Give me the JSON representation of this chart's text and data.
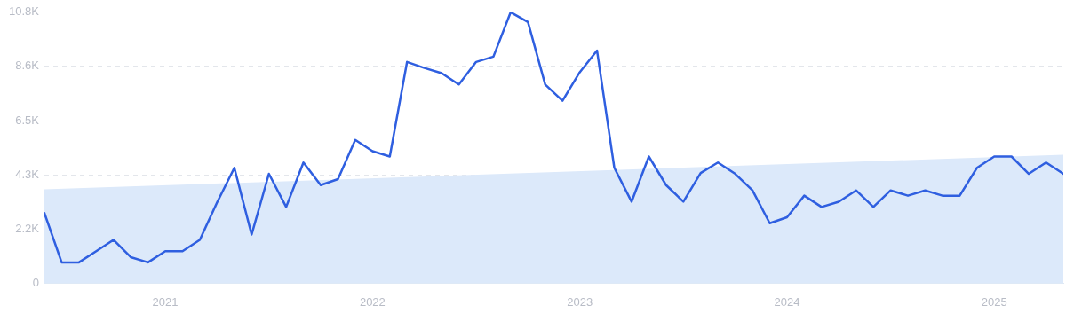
{
  "chart_data": {
    "type": "line",
    "x": [
      "2020-06",
      "2020-07",
      "2020-08",
      "2020-09",
      "2020-10",
      "2020-11",
      "2020-12",
      "2021-01",
      "2021-02",
      "2021-03",
      "2021-04",
      "2021-05",
      "2021-06",
      "2021-07",
      "2021-08",
      "2021-09",
      "2021-10",
      "2021-11",
      "2021-12",
      "2022-01",
      "2022-02",
      "2022-03",
      "2022-04",
      "2022-05",
      "2022-06",
      "2022-07",
      "2022-08",
      "2022-09",
      "2022-10",
      "2022-11",
      "2022-12",
      "2023-01",
      "2023-02",
      "2023-03",
      "2023-04",
      "2023-05",
      "2023-06",
      "2023-07",
      "2023-08",
      "2023-09",
      "2023-10",
      "2023-11",
      "2023-12",
      "2024-01",
      "2024-02",
      "2024-03",
      "2024-04",
      "2024-05",
      "2024-06",
      "2024-07",
      "2024-08",
      "2024-09",
      "2024-10",
      "2024-11",
      "2024-12",
      "2025-01",
      "2025-02",
      "2025-03",
      "2025-04",
      "2025-05"
    ],
    "series": [
      {
        "type": "area",
        "color": "#dce9fa",
        "x": [
          "2020-06",
          "2025-05"
        ],
        "values": [
          3740,
          5120
        ]
      },
      {
        "type": "line",
        "color": "#2f5fe0",
        "values": [
          2800,
          830,
          830,
          1280,
          1730,
          1040,
          830,
          1280,
          1280,
          1730,
          3220,
          4600,
          1940,
          4360,
          3040,
          4810,
          3910,
          4150,
          5710,
          5260,
          5050,
          8820,
          8580,
          8370,
          7920,
          8820,
          9030,
          10800,
          10410,
          7920,
          7270,
          8410,
          9270,
          4600,
          3250,
          5050,
          3910,
          3250,
          4390,
          4810,
          4360,
          3700,
          2390,
          2630,
          3490,
          3040,
          3250,
          3700,
          3040,
          3700,
          3490,
          3700,
          3490,
          3490,
          4600,
          5050,
          5050,
          4360,
          4810,
          4360
        ]
      }
    ],
    "xlim": [
      "2020-06",
      "2025-05"
    ],
    "xticks": [
      "2021",
      "2022",
      "2023",
      "2024",
      "2025"
    ],
    "ylim": [
      0,
      10800
    ],
    "yticks": [
      0,
      {
        "value": 2160,
        "label": "2.2K"
      },
      {
        "value": 4320,
        "label": "4.3K"
      },
      {
        "value": 6480,
        "label": "6.5K"
      },
      {
        "value": 8640,
        "label": "8.6K"
      },
      {
        "value": 10800,
        "label": "10.8K"
      }
    ],
    "grid": "y",
    "legend": false,
    "marker": "none",
    "line_style": "solid"
  }
}
